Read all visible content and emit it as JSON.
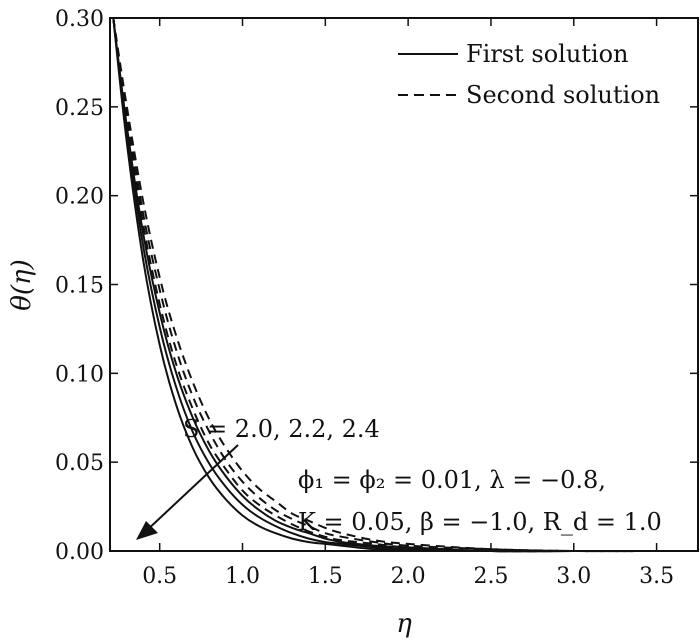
{
  "chart_data": {
    "type": "line",
    "xlabel": "η",
    "ylabel": "θ(η)",
    "xlim": [
      0.2,
      3.75
    ],
    "ylim": [
      0.0,
      0.3
    ],
    "xticks": [
      "0.5",
      "1.0",
      "1.5",
      "2.0",
      "2.5",
      "3.0",
      "3.5"
    ],
    "yticks": [
      "0.00",
      "0.05",
      "0.10",
      "0.15",
      "0.20",
      "0.25",
      "0.30"
    ],
    "legend": {
      "position": "top-right",
      "entries": [
        {
          "label": "First solution",
          "style": "solid"
        },
        {
          "label": "Second solution",
          "style": "dashed"
        }
      ]
    },
    "annotations": {
      "s_values": "S = 2.0, 2.2, 2.4",
      "params_line1": "ϕ₁ = ϕ₂ = 0.01, λ = −0.8,",
      "params_line2": "K = 0.05, β = −1.0, R_d = 1.0"
    },
    "series": [
      {
        "style": "solid",
        "x": [
          0.22,
          0.3,
          0.4,
          0.5,
          0.6,
          0.7,
          0.8,
          0.9,
          1.0,
          1.1,
          1.2,
          1.3,
          1.4,
          1.5,
          1.6,
          1.8,
          2.0,
          2.5,
          3.0,
          3.5,
          3.75
        ],
        "y": [
          0.3,
          0.231,
          0.164,
          0.116,
          0.082,
          0.058,
          0.041,
          0.029,
          0.02,
          0.014,
          0.01,
          0.007,
          0.005,
          0.004,
          0.003,
          0.001,
          0.001,
          0.0,
          0.0,
          0.0,
          0.0
        ]
      },
      {
        "style": "solid",
        "x": [
          0.22,
          0.3,
          0.4,
          0.5,
          0.6,
          0.7,
          0.8,
          0.9,
          1.0,
          1.1,
          1.2,
          1.3,
          1.4,
          1.5,
          1.6,
          1.8,
          2.0,
          2.5,
          3.0,
          3.5,
          3.75
        ],
        "y": [
          0.3,
          0.236,
          0.172,
          0.126,
          0.092,
          0.067,
          0.049,
          0.036,
          0.026,
          0.019,
          0.014,
          0.01,
          0.007,
          0.005,
          0.004,
          0.002,
          0.001,
          0.0,
          0.0,
          0.0,
          0.0
        ]
      },
      {
        "style": "solid",
        "x": [
          0.22,
          0.3,
          0.4,
          0.5,
          0.6,
          0.7,
          0.8,
          0.9,
          1.0,
          1.1,
          1.2,
          1.3,
          1.4,
          1.5,
          1.6,
          1.8,
          2.0,
          2.5,
          3.0,
          3.5,
          3.75
        ],
        "y": [
          0.3,
          0.24,
          0.179,
          0.134,
          0.1,
          0.075,
          0.056,
          0.042,
          0.031,
          0.023,
          0.017,
          0.013,
          0.01,
          0.007,
          0.005,
          0.003,
          0.002,
          0.0,
          0.0,
          0.0,
          0.0
        ]
      },
      {
        "style": "dashed",
        "x": [
          0.22,
          0.3,
          0.4,
          0.5,
          0.6,
          0.7,
          0.8,
          0.9,
          1.0,
          1.1,
          1.2,
          1.3,
          1.4,
          1.5,
          1.6,
          1.8,
          2.0,
          2.5,
          3.0,
          3.5,
          3.75
        ],
        "y": [
          0.3,
          0.243,
          0.184,
          0.139,
          0.105,
          0.08,
          0.06,
          0.046,
          0.034,
          0.026,
          0.02,
          0.015,
          0.011,
          0.008,
          0.006,
          0.004,
          0.002,
          0.0,
          0.0,
          0.0,
          0.0
        ]
      },
      {
        "style": "dashed",
        "x": [
          0.22,
          0.3,
          0.4,
          0.5,
          0.6,
          0.7,
          0.8,
          0.9,
          1.0,
          1.1,
          1.2,
          1.3,
          1.4,
          1.5,
          1.6,
          1.8,
          2.0,
          2.5,
          3.0,
          3.5,
          3.75
        ],
        "y": [
          0.3,
          0.247,
          0.19,
          0.147,
          0.113,
          0.087,
          0.067,
          0.051,
          0.039,
          0.03,
          0.023,
          0.018,
          0.014,
          0.01,
          0.008,
          0.005,
          0.003,
          0.001,
          0.0,
          0.0,
          0.0
        ]
      },
      {
        "style": "dashed",
        "x": [
          0.22,
          0.3,
          0.4,
          0.5,
          0.6,
          0.7,
          0.8,
          0.9,
          1.0,
          1.1,
          1.2,
          1.3,
          1.4,
          1.5,
          1.6,
          1.8,
          2.0,
          2.5,
          3.0,
          3.5,
          3.75
        ],
        "y": [
          0.3,
          0.251,
          0.197,
          0.154,
          0.121,
          0.095,
          0.074,
          0.058,
          0.045,
          0.035,
          0.028,
          0.021,
          0.017,
          0.013,
          0.01,
          0.006,
          0.004,
          0.001,
          0.0,
          0.0,
          0.0
        ]
      }
    ]
  }
}
